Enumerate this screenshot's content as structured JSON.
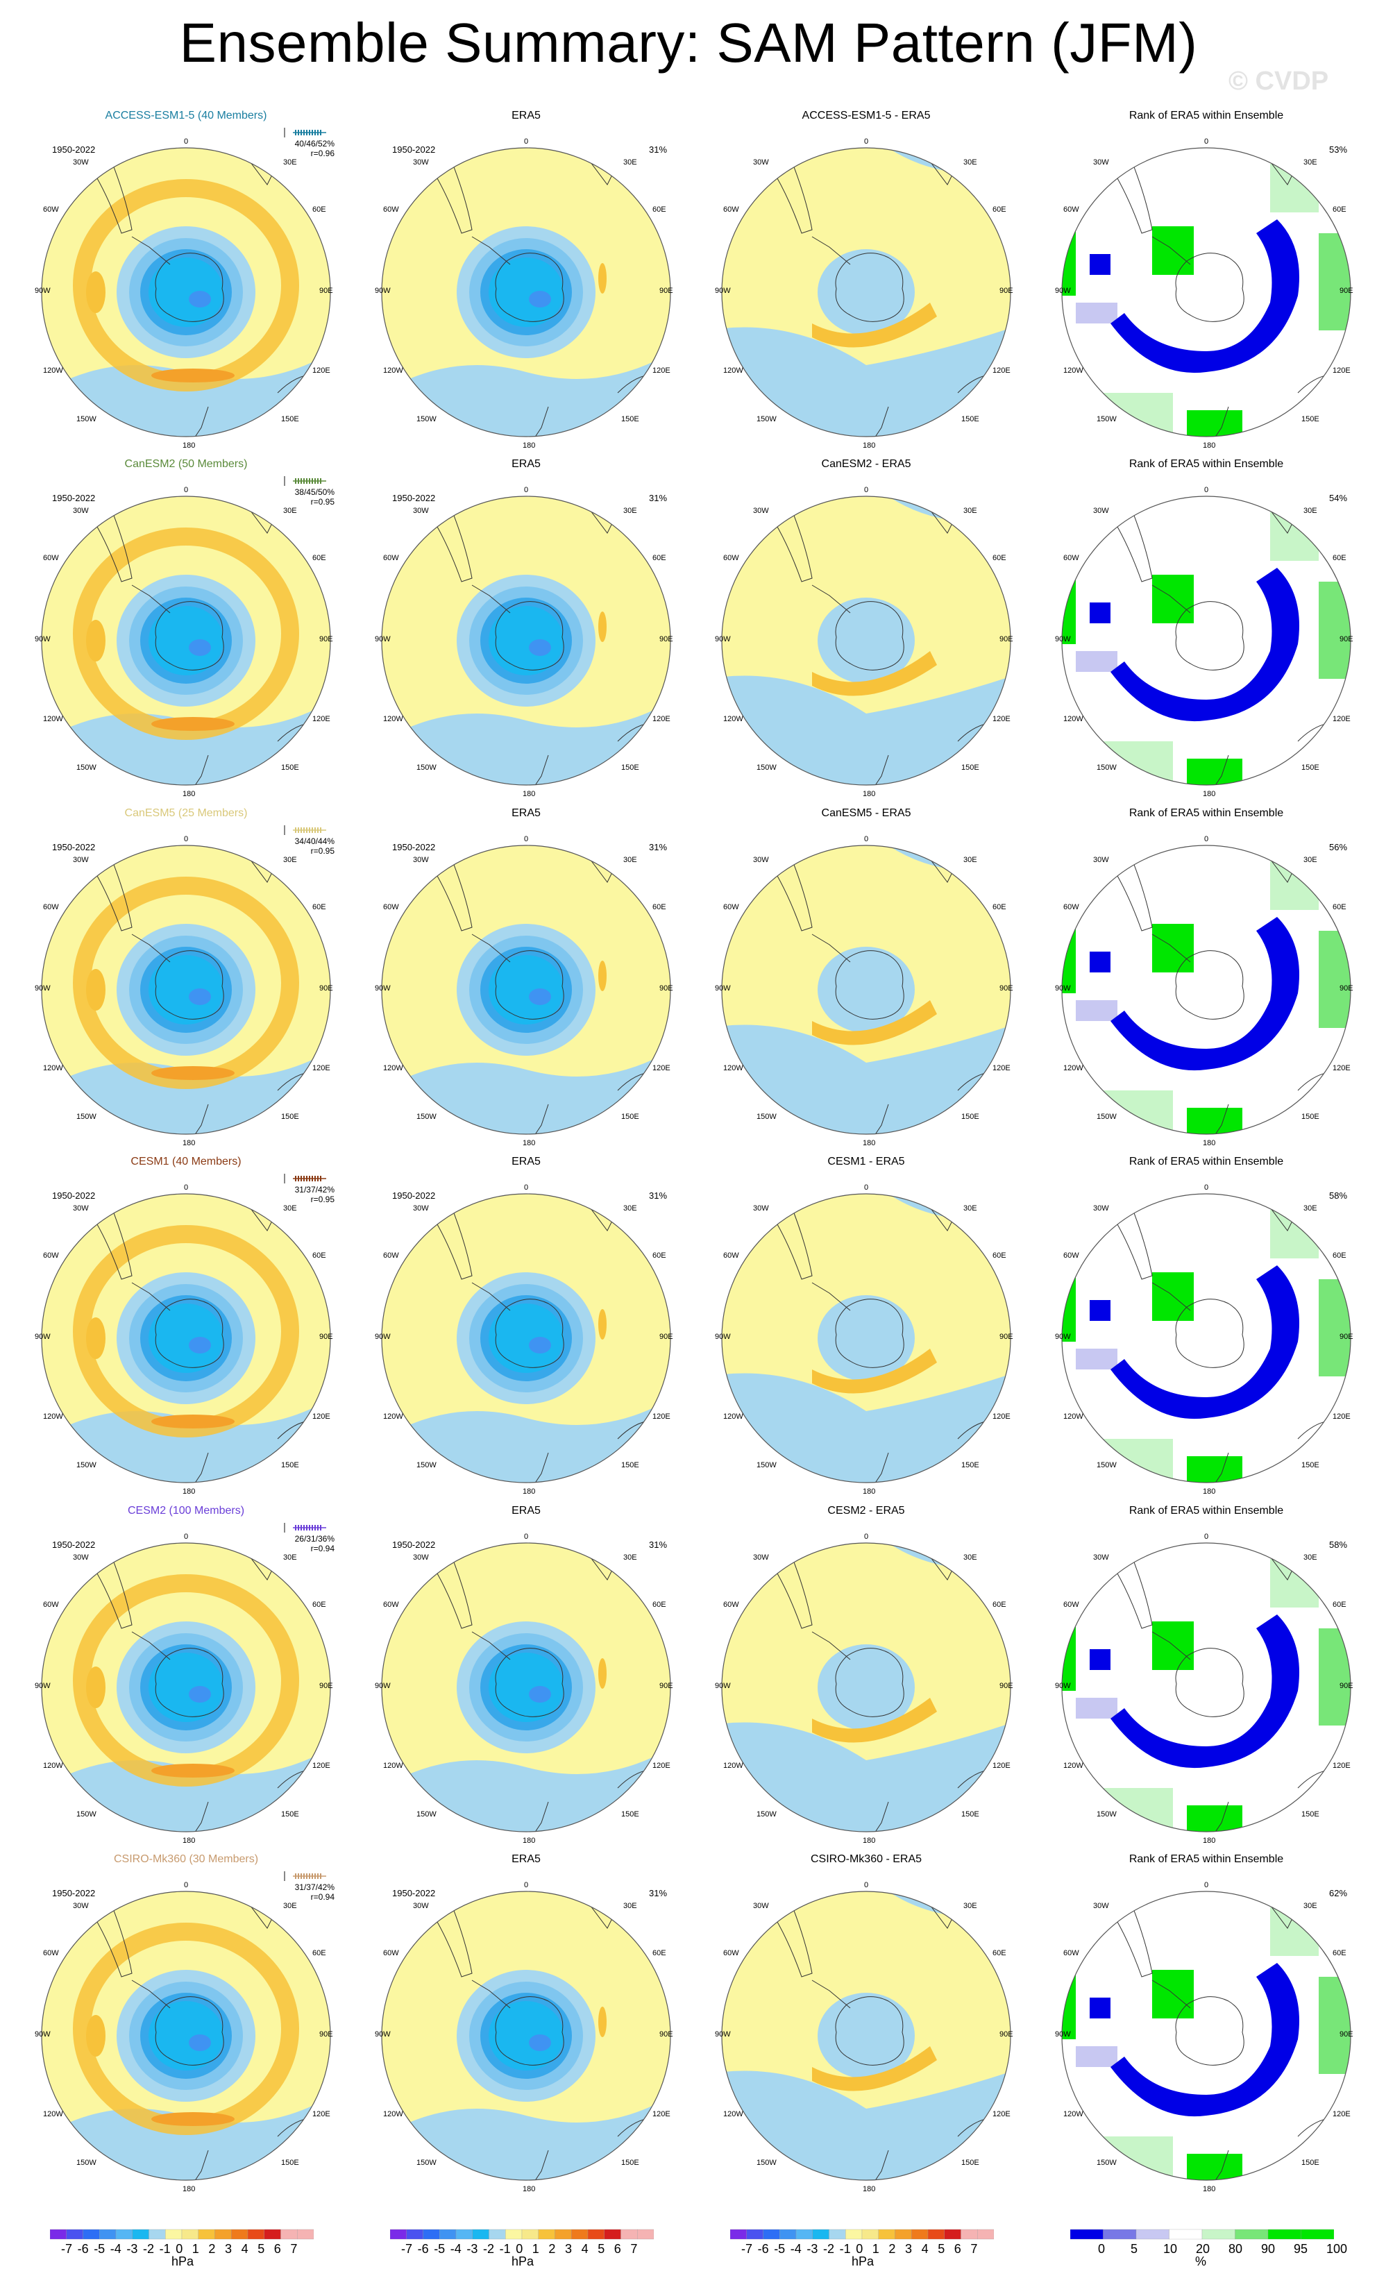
{
  "title": "Ensemble Summary: SAM Pattern (JFM)",
  "watermark": "© CVDP",
  "colors": {
    "model_label_colors": [
      "#1a7ea0",
      "#5a8a3a",
      "#d9c87a",
      "#8a3a14",
      "#6a3ed8",
      "#c79a6e"
    ],
    "neg7": "#7a2ae8",
    "neg6": "#4a52f0",
    "neg5": "#2d6ef5",
    "neg4": "#3f93f2",
    "neg3": "#55b6f4",
    "neg2": "#1ab7f0",
    "neg1": "#a7d7ef",
    "zero": "#fbf7a1",
    "pos1": "#f7e98a",
    "pos2": "#f7c23a",
    "pos3": "#f4a12a",
    "pos4": "#ef7a1c",
    "pos5": "#e84a18",
    "pos6": "#d51e1e",
    "pos7": "#f5b3b3",
    "rank_dark_blue": "#0000e6",
    "rank_mid_blue": "#7878e6",
    "rank_light_blue": "#c8c8f2",
    "rank_white": "#ffffff",
    "rank_light_green": "#c8f5c8",
    "rank_mid_green": "#78e678",
    "rank_green": "#00e600"
  },
  "column_titles": [
    "ERA5",
    "Rank of ERA5 within Ensemble"
  ],
  "rows": [
    {
      "model": "ACCESS-ESM1-5 (40 Members)",
      "diff_title": "ACCESS-ESM1-5 - ERA5",
      "stats": "40/46/52%",
      "r": "r=0.96",
      "period": "1950-2022",
      "era5_pct": "31%",
      "rank_pct": "53%"
    },
    {
      "model": "CanESM2 (50 Members)",
      "diff_title": "CanESM2 - ERA5",
      "stats": "38/45/50%",
      "r": "r=0.95",
      "period": "1950-2022",
      "era5_pct": "31%",
      "rank_pct": "54%"
    },
    {
      "model": "CanESM5 (25 Members)",
      "diff_title": "CanESM5 - ERA5",
      "stats": "34/40/44%",
      "r": "r=0.95",
      "period": "1950-2022",
      "era5_pct": "31%",
      "rank_pct": "56%"
    },
    {
      "model": "CESM1 (40 Members)",
      "diff_title": "CESM1 - ERA5",
      "stats": "31/37/42%",
      "r": "r=0.95",
      "period": "1950-2022",
      "era5_pct": "31%",
      "rank_pct": "58%"
    },
    {
      "model": "CESM2 (100 Members)",
      "diff_title": "CESM2 - ERA5",
      "stats": "26/31/36%",
      "r": "r=0.94",
      "period": "1950-2022",
      "era5_pct": "31%",
      "rank_pct": "58%"
    },
    {
      "model": "CSIRO-Mk360 (30 Members)",
      "diff_title": "CSIRO-Mk360 - ERA5",
      "stats": "31/37/42%",
      "r": "r=0.94",
      "period": "1950-2022",
      "era5_pct": "31%",
      "rank_pct": "62%"
    }
  ],
  "map_labels": {
    "top": "0",
    "bottom": "180",
    "left_upper": "30W",
    "left_mid_up": "60W",
    "left_mid": "90W",
    "left_mid_low": "120W",
    "left_lower": "150W",
    "right_upper": "30E",
    "right_mid_up": "60E",
    "right_mid": "90E",
    "right_mid_low": "120E",
    "right_lower": "150E"
  },
  "colorbars": {
    "hpa_ticks": [
      "-7",
      "-6",
      "-5",
      "-4",
      "-3",
      "-2",
      "-1",
      "0",
      "1",
      "2",
      "3",
      "4",
      "5",
      "6",
      "7"
    ],
    "hpa_unit": "hPa",
    "rank_ticks": [
      "0",
      "5",
      "10",
      "20",
      "80",
      "90",
      "95",
      "100"
    ],
    "rank_unit": "%"
  }
}
